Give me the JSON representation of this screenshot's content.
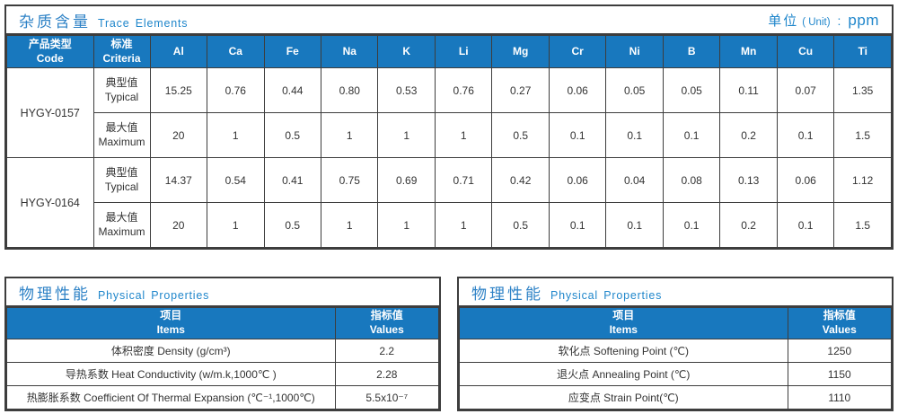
{
  "colors": {
    "header_blue": "#1878be",
    "title_blue": "#2e82c6",
    "border_dark": "#3d3d3d",
    "text": "#333333"
  },
  "trace_table": {
    "title_zh": "杂质含量",
    "title_en": "Trace Elements",
    "unit": {
      "zh": "单位",
      "en": "( Unit)",
      "colon": ":",
      "value": "ppm"
    },
    "col_code": {
      "zh": "产品类型",
      "en": "Code"
    },
    "col_criteria": {
      "zh": "标准",
      "en": "Criteria"
    },
    "elements": [
      "Al",
      "Ca",
      "Fe",
      "Na",
      "K",
      "Li",
      "Mg",
      "Cr",
      "Ni",
      "B",
      "Mn",
      "Cu",
      "Ti"
    ],
    "products": [
      {
        "code": "HYGY-0157",
        "rows": [
          {
            "criteria_zh": "典型值",
            "criteria_en": "Typical",
            "values": [
              "15.25",
              "0.76",
              "0.44",
              "0.80",
              "0.53",
              "0.76",
              "0.27",
              "0.06",
              "0.05",
              "0.05",
              "0.11",
              "0.07",
              "1.35"
            ]
          },
          {
            "criteria_zh": "最大值",
            "criteria_en": "Maximum",
            "values": [
              "20",
              "1",
              "0.5",
              "1",
              "1",
              "1",
              "0.5",
              "0.1",
              "0.1",
              "0.1",
              "0.2",
              "0.1",
              "1.5"
            ]
          }
        ]
      },
      {
        "code": "HYGY-0164",
        "rows": [
          {
            "criteria_zh": "典型值",
            "criteria_en": "Typical",
            "values": [
              "14.37",
              "0.54",
              "0.41",
              "0.75",
              "0.69",
              "0.71",
              "0.42",
              "0.06",
              "0.04",
              "0.08",
              "0.13",
              "0.06",
              "1.12"
            ]
          },
          {
            "criteria_zh": "最大值",
            "criteria_en": "Maximum",
            "values": [
              "20",
              "1",
              "0.5",
              "1",
              "1",
              "1",
              "0.5",
              "0.1",
              "0.1",
              "0.1",
              "0.2",
              "0.1",
              "1.5"
            ]
          }
        ]
      }
    ]
  },
  "physical_left": {
    "title_zh": "物理性能",
    "title_en": "Physical Properties",
    "headers": {
      "item_zh": "项目",
      "item_en": "Items",
      "value_zh": "指标值",
      "value_en": "Values"
    },
    "rows": [
      {
        "item": "体积密度 Density (g/cm³)",
        "value": "2.2"
      },
      {
        "item": "导热系数 Heat Conductivity (w/m.k,1000℃ )",
        "value": "2.28"
      },
      {
        "item": "热膨胀系数 Coefficient Of Thermal Expansion (℃⁻¹,1000℃)",
        "value": "5.5x10⁻⁷"
      }
    ]
  },
  "physical_right": {
    "title_zh": "物理性能",
    "title_en": "Physical Properties",
    "headers": {
      "item_zh": "项目",
      "item_en": "Items",
      "value_zh": "指标值",
      "value_en": "Values"
    },
    "rows": [
      {
        "item": "软化点 Softening Point (℃)",
        "value": "1250"
      },
      {
        "item": "退火点 Annealing Point (℃)",
        "value": "1150"
      },
      {
        "item": "应变点 Strain Point(℃)",
        "value": "1110"
      }
    ]
  }
}
